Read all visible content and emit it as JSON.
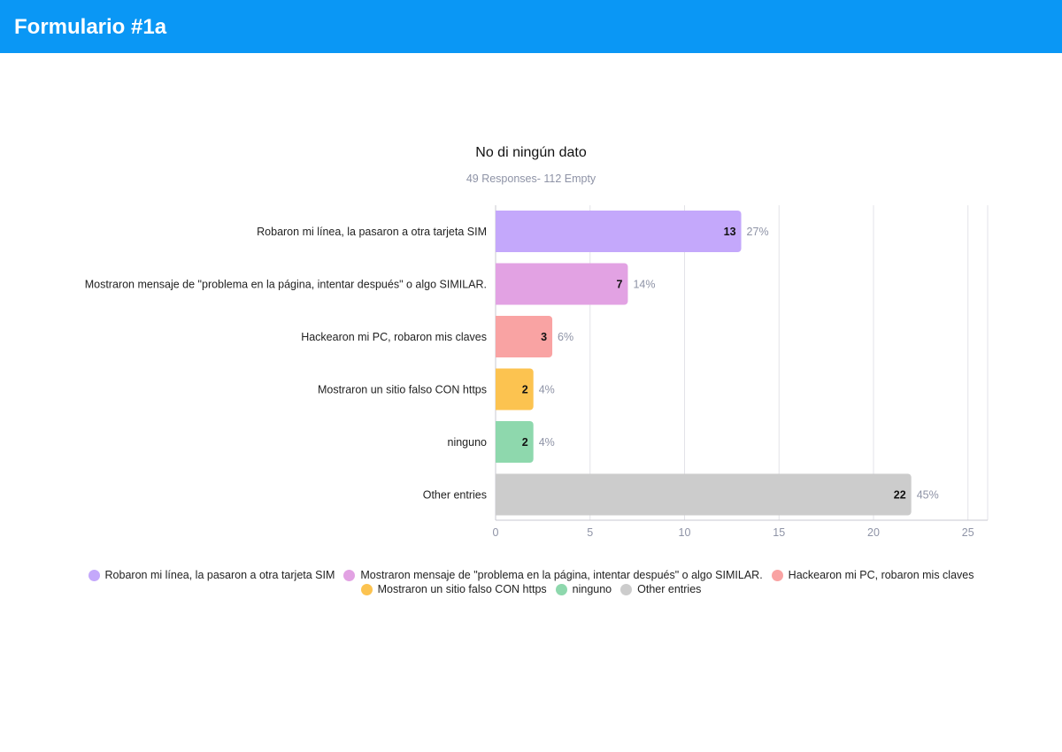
{
  "header": {
    "title": "Formulario #1a"
  },
  "chart_data": {
    "type": "bar",
    "orientation": "horizontal",
    "title": "No di ningún dato",
    "subtitle": "49 Responses- 112 Empty",
    "categories": [
      "Robaron mi línea, la pasaron a otra tarjeta SIM",
      "Mostraron mensaje de \"problema en la página, intentar después\" o algo SIMILAR.",
      "Hackearon mi PC, robaron mis claves",
      "Mostraron un sitio falso CON https",
      "ninguno",
      "Other entries"
    ],
    "values": [
      13,
      7,
      3,
      2,
      2,
      22
    ],
    "percent_labels": [
      "27%",
      "14%",
      "6%",
      "4%",
      "4%",
      "45%"
    ],
    "colors": [
      "#c4a8fb",
      "#e2a2e3",
      "#f9a3a3",
      "#fcc350",
      "#8ed8ad",
      "#cccccc"
    ],
    "xlim": [
      0,
      26
    ],
    "xticks": [
      0,
      5,
      10,
      15,
      20,
      25
    ],
    "grid": true,
    "legend_position": "bottom"
  }
}
